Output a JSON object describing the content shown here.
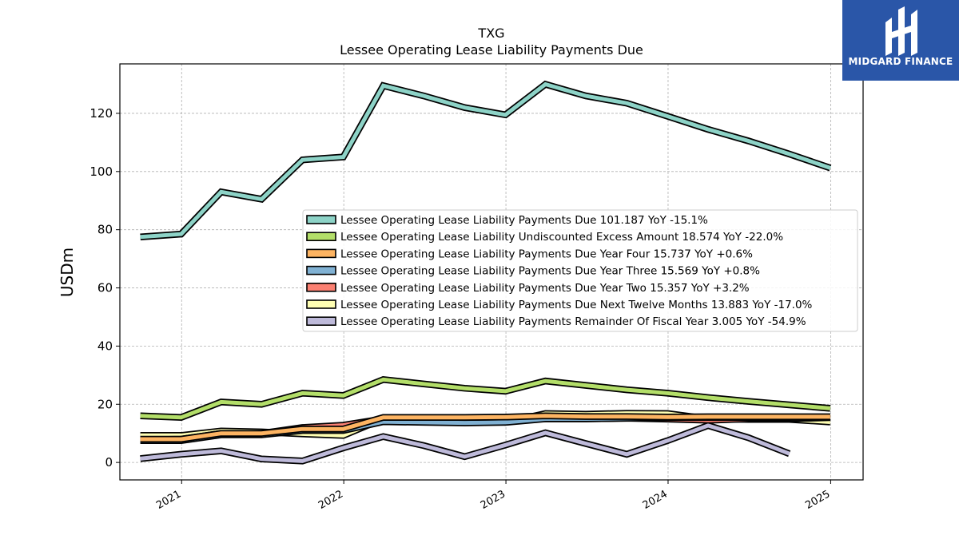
{
  "brand": {
    "name": "MIDGARD FINANCE",
    "logo_color": "#2a56a8"
  },
  "chart_data": {
    "type": "line",
    "title": "TXG",
    "subtitle": "Lessee Operating Lease Liability Payments Due",
    "ylabel": "USDm",
    "xlabel": "",
    "xlim": [
      "2020-08-15",
      "2025-03-15"
    ],
    "ylim": [
      -6,
      137
    ],
    "yticks": [
      0,
      20,
      40,
      60,
      80,
      100,
      120
    ],
    "xticks": [
      {
        "date": "2021-01-01",
        "label": "2021"
      },
      {
        "date": "2022-01-01",
        "label": "2022"
      },
      {
        "date": "2023-01-01",
        "label": "2023"
      },
      {
        "date": "2024-01-01",
        "label": "2024"
      },
      {
        "date": "2025-01-01",
        "label": "2025"
      }
    ],
    "grid": true,
    "legend_position": "center-right",
    "x": [
      "2020-09-30",
      "2020-12-31",
      "2021-03-31",
      "2021-06-30",
      "2021-09-30",
      "2021-12-31",
      "2022-03-31",
      "2022-06-30",
      "2022-09-30",
      "2022-12-31",
      "2023-03-31",
      "2023-06-30",
      "2023-09-30",
      "2023-12-31",
      "2024-03-31",
      "2024-06-30",
      "2024-09-30",
      "2024-12-31"
    ],
    "series": [
      {
        "name": "Lessee Operating Lease Liability Payments Due",
        "legend": "Lessee Operating Lease Liability Payments Due  101.187 YoY -15.1%",
        "color": "#8dd3c7",
        "values": [
          77.5,
          78.5,
          93.0,
          90.5,
          104.0,
          105.0,
          129.5,
          126.0,
          122.0,
          119.5,
          130.0,
          126.0,
          123.5,
          119.0,
          114.5,
          110.5,
          106.0,
          101.2
        ]
      },
      {
        "name": "Lessee Operating Lease Liability Undiscounted Excess Amount",
        "legend": "Lessee Operating Lease Liability Undiscounted Excess Amount  18.574 YoY -22.0%",
        "color": "#b3de69",
        "values": [
          16.0,
          15.5,
          20.8,
          20.0,
          23.8,
          23.0,
          28.5,
          27.0,
          25.5,
          24.5,
          28.0,
          26.5,
          25.0,
          23.8,
          22.3,
          21.0,
          19.8,
          18.6
        ]
      },
      {
        "name": "Lessee Operating Lease Liability Payments Due Year Four",
        "legend": "Lessee Operating Lease Liability Payments Due Year Four  15.737 YoY +0.6%",
        "color": "#fdb462",
        "values": [
          8.0,
          8.0,
          10.0,
          10.0,
          11.5,
          11.5,
          15.5,
          15.5,
          15.5,
          15.6,
          16.0,
          15.8,
          15.8,
          15.6,
          15.7,
          15.7,
          15.7,
          15.7
        ]
      },
      {
        "name": "Lessee Operating Lease Liability Payments Due Year Three",
        "legend": "Lessee Operating Lease Liability Payments Due Year Three  15.569 YoY +0.8%",
        "color": "#80b1d3",
        "values": [
          7.5,
          7.5,
          9.5,
          9.5,
          11.0,
          11.0,
          14.0,
          13.8,
          13.6,
          13.8,
          15.0,
          15.0,
          15.2,
          15.4,
          15.5,
          15.5,
          15.5,
          15.6
        ]
      },
      {
        "name": "Lessee Operating Lease Liability Payments Due Year Two",
        "legend": "Lessee Operating Lease Liability Payments Due Year Two  15.357 YoY +3.2%",
        "color": "#fb8072",
        "values": [
          7.8,
          8.0,
          10.0,
          10.0,
          12.0,
          12.8,
          15.0,
          15.0,
          15.0,
          15.5,
          15.0,
          15.0,
          15.2,
          14.9,
          14.5,
          15.0,
          15.0,
          15.4
        ]
      },
      {
        "name": "Lessee Operating Lease Liability Payments Due Next Twelve Months",
        "legend": "Lessee Operating Lease Liability Payments Due Next Twelve Months  13.883 YoY -17.0%",
        "color": "#ffffb3",
        "values": [
          9.3,
          9.3,
          10.8,
          10.5,
          9.8,
          9.3,
          15.0,
          14.8,
          14.5,
          13.8,
          16.8,
          16.6,
          16.9,
          16.8,
          15.0,
          14.8,
          14.8,
          13.9
        ]
      },
      {
        "name": "Lessee Operating Lease Liability Payments Remainder Of Fiscal Year",
        "legend": "Lessee Operating Lease Liability Payments Remainder Of Fiscal Year  3.005 YoY -54.9%",
        "color": "#bebada",
        "values": [
          1.3,
          2.8,
          4.0,
          1.2,
          0.5,
          5.0,
          8.9,
          5.8,
          2.0,
          6.0,
          10.2,
          6.5,
          2.8,
          7.5,
          12.7,
          8.5,
          3.0,
          null
        ]
      }
    ]
  }
}
